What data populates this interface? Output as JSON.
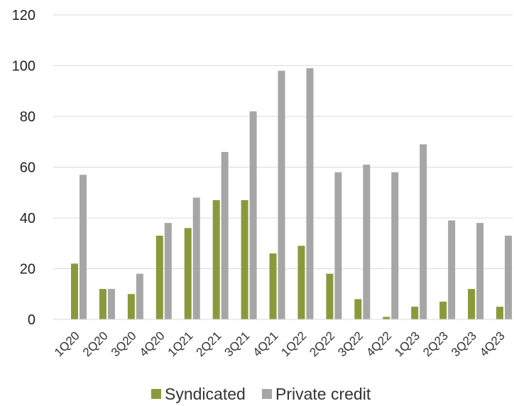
{
  "chart_data": {
    "type": "bar",
    "categories": [
      "1Q20",
      "2Q20",
      "3Q20",
      "4Q20",
      "1Q21",
      "2Q21",
      "3Q21",
      "4Q21",
      "1Q22",
      "2Q22",
      "3Q22",
      "4Q22",
      "1Q23",
      "2Q23",
      "3Q23",
      "4Q23"
    ],
    "series": [
      {
        "name": "Syndicated",
        "color": "#8a9a3b",
        "values": [
          22,
          12,
          10,
          33,
          36,
          47,
          47,
          26,
          29,
          18,
          8,
          1,
          5,
          7,
          12,
          5
        ]
      },
      {
        "name": "Private credit",
        "color": "#a6a6a6",
        "values": [
          57,
          12,
          18,
          38,
          48,
          66,
          82,
          98,
          99,
          58,
          61,
          58,
          69,
          39,
          38,
          33
        ]
      }
    ],
    "title": "",
    "xlabel": "",
    "ylabel": "",
    "ylim": [
      0,
      120
    ],
    "yticks": [
      0,
      20,
      40,
      60,
      80,
      100,
      120
    ],
    "grid": true,
    "legend": "bottom-center"
  }
}
